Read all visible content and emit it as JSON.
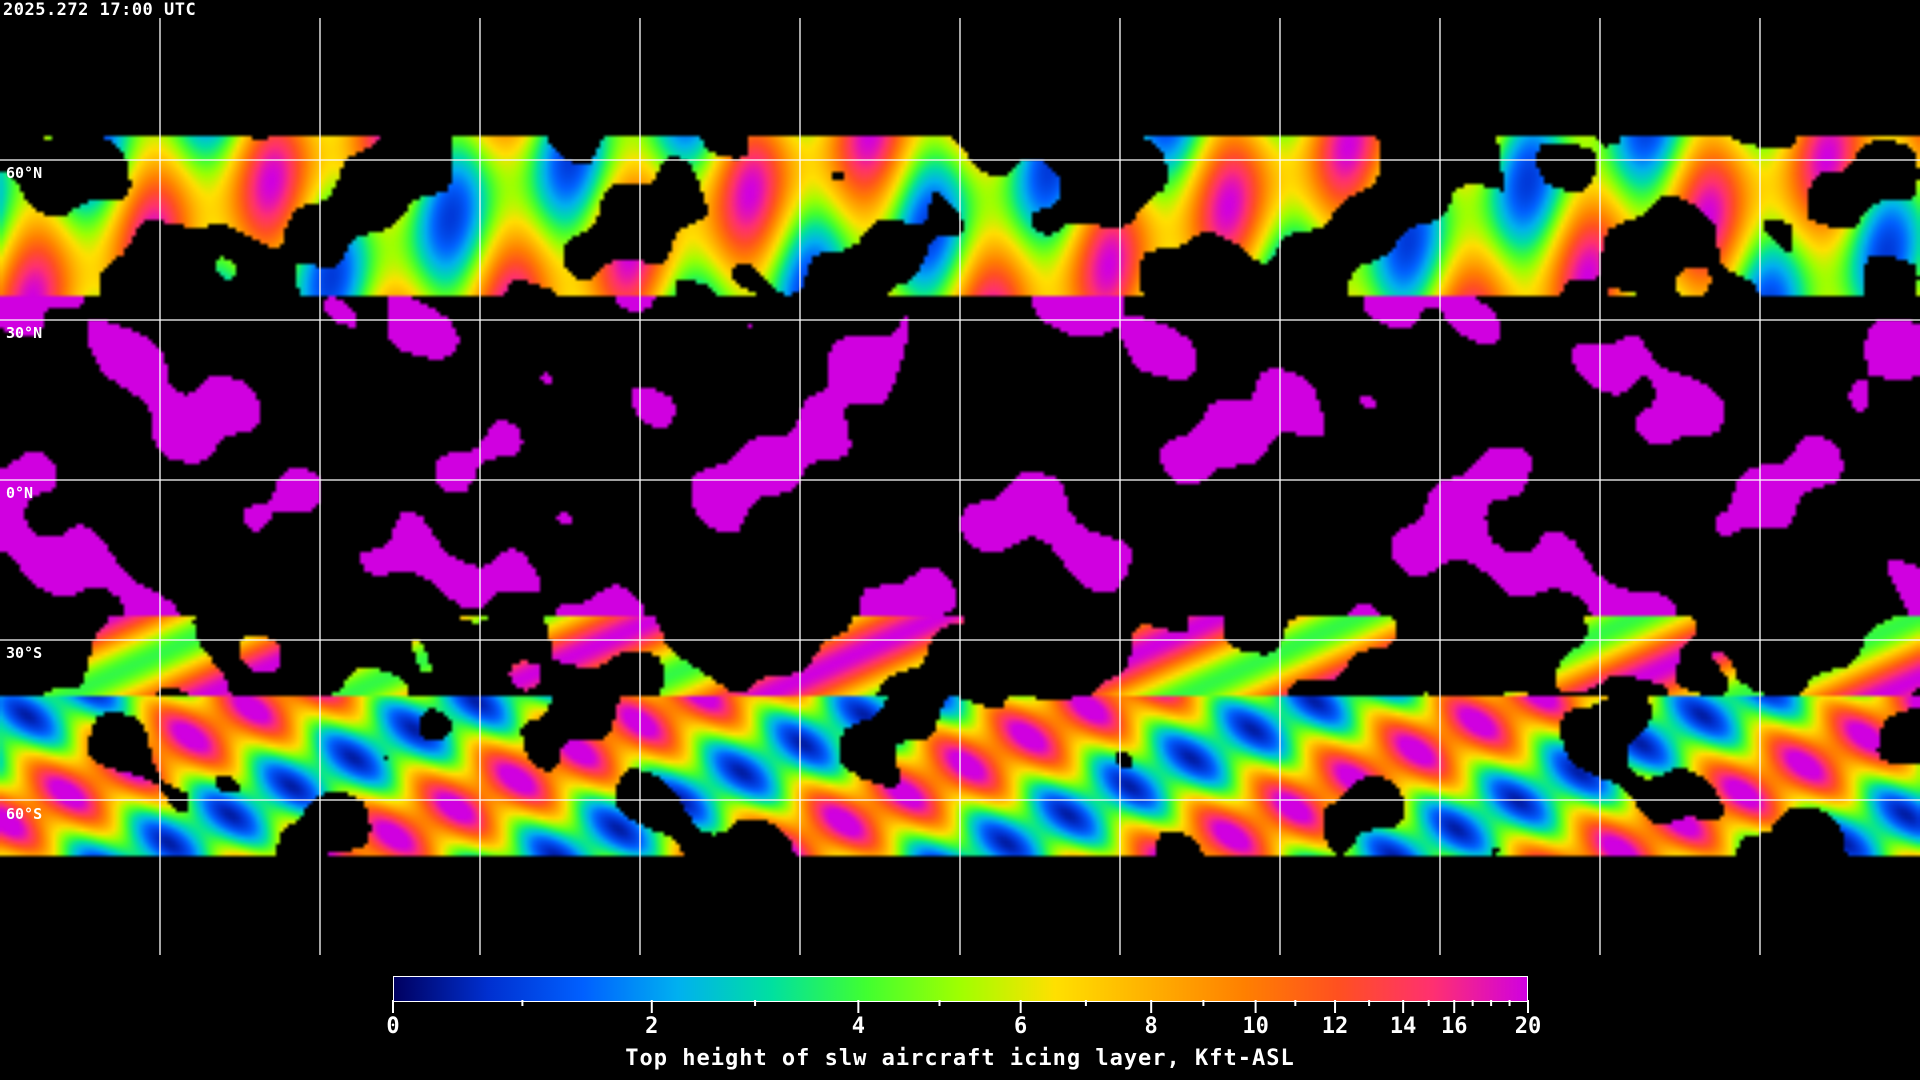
{
  "header": {
    "timestamp": "2025.272 17:00 UTC"
  },
  "map": {
    "projection": "equirectangular",
    "grid_spacing_deg": 30,
    "lat_labels": [
      "60°N",
      "30°N",
      "0°N",
      "30°S",
      "60°S"
    ],
    "data_coverage_lat": [
      65,
      -70
    ],
    "coastlines": true,
    "grid_color": "#ffffff"
  },
  "colorbar": {
    "title": "Top height of slw aircraft icing layer, Kft-ASL",
    "min": 0,
    "max": 20,
    "tick_labels": [
      "0",
      "2",
      "4",
      "6",
      "8",
      "10",
      "12",
      "14",
      "16",
      "20"
    ],
    "tick_values": [
      0,
      2,
      4,
      6,
      8,
      10,
      12,
      14,
      16,
      20
    ],
    "minor_tick_values": [
      1,
      3,
      5,
      7,
      9,
      11,
      13,
      15,
      17,
      18,
      19
    ],
    "colors": [
      "#000060",
      "#0030d0",
      "#0060ff",
      "#00b0f0",
      "#00e0a0",
      "#40ff30",
      "#a0ff00",
      "#ffe000",
      "#ffb000",
      "#ff8000",
      "#ff5020",
      "#ff3070",
      "#d000e0"
    ]
  }
}
